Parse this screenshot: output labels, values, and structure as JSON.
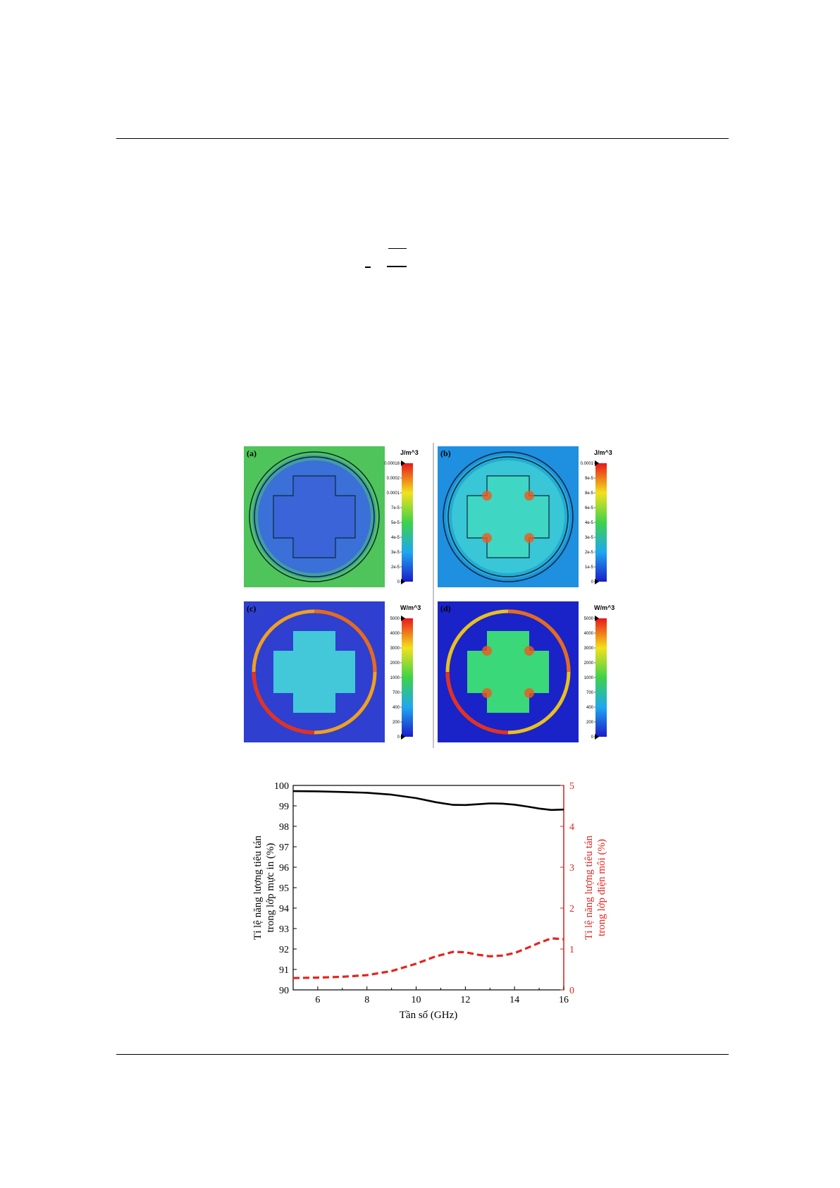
{
  "page": {
    "top_rule": true,
    "bottom_rule": true
  },
  "field_maps": {
    "panels": [
      {
        "label": "(a)",
        "unit": "J/m^3",
        "ticks": [
          "0.00018",
          "0.0002",
          "0.0001",
          "7e-5",
          "5e-5",
          "4e-5",
          "3e-5",
          "2e-5",
          "0"
        ],
        "background": "#4fc45a"
      },
      {
        "label": "(b)",
        "unit": "J/m^3",
        "ticks": [
          "0.0001",
          "9e-5",
          "8e-5",
          "6e-5",
          "4e-5",
          "3e-5",
          "2e-5",
          "1e-5",
          "0"
        ],
        "background": "#1f8fe0"
      },
      {
        "label": "(c)",
        "unit": "W/m^3",
        "ticks": [
          "5000",
          "4000",
          "3000",
          "2000",
          "1000",
          "700",
          "400",
          "200",
          "0"
        ],
        "background": "#2f3fd0"
      },
      {
        "label": "(d)",
        "unit": "W/m^3",
        "ticks": [
          "5000",
          "4000",
          "3000",
          "2000",
          "1000",
          "700",
          "400",
          "200",
          "0"
        ],
        "background": "#1a23c8"
      }
    ]
  },
  "chart_data": {
    "type": "line",
    "xlabel": "Tần số (GHz)",
    "ylabel_left": "Tỉ lệ năng lượng tiêu tán trong lớp mực in (%)",
    "ylabel_left_lines": [
      "Tỉ lệ năng lượng tiêu tán",
      "trong lớp mực in (%)"
    ],
    "ylabel_right": "Tỉ lệ năng lượng tiêu tán trong lớp điện môi (%)",
    "ylabel_right_lines": [
      "Tỉ lệ năng lượng tiêu tán",
      "trong lớp điện môi (%)"
    ],
    "xlim": [
      5,
      16
    ],
    "ylim_left": [
      90,
      100
    ],
    "ylim_right": [
      0,
      5
    ],
    "xticks": [
      6,
      8,
      10,
      12,
      14,
      16
    ],
    "yticks_left": [
      90,
      91,
      92,
      93,
      94,
      95,
      96,
      97,
      98,
      99,
      100
    ],
    "yticks_right": [
      0,
      1,
      2,
      3,
      4,
      5
    ],
    "series": [
      {
        "axis": "left",
        "color": "#000000",
        "style": "solid",
        "x": [
          5,
          6,
          7,
          8,
          9,
          10,
          10.8,
          11.5,
          12,
          12.5,
          13,
          13.5,
          14,
          14.5,
          15,
          15.5,
          16
        ],
        "y": [
          99.72,
          99.71,
          99.68,
          99.64,
          99.55,
          99.38,
          99.18,
          99.05,
          99.04,
          99.08,
          99.12,
          99.11,
          99.06,
          98.97,
          98.87,
          98.8,
          98.82
        ]
      },
      {
        "axis": "right",
        "color": "#e8231c",
        "style": "dashed",
        "x": [
          5,
          6,
          7,
          8,
          9,
          10,
          10.8,
          11.5,
          12,
          12.5,
          13,
          13.5,
          14,
          14.5,
          15,
          15.5,
          16
        ],
        "y": [
          0.29,
          0.3,
          0.32,
          0.36,
          0.46,
          0.64,
          0.82,
          0.93,
          0.92,
          0.86,
          0.82,
          0.84,
          0.9,
          1.02,
          1.15,
          1.26,
          1.24
        ]
      }
    ]
  }
}
